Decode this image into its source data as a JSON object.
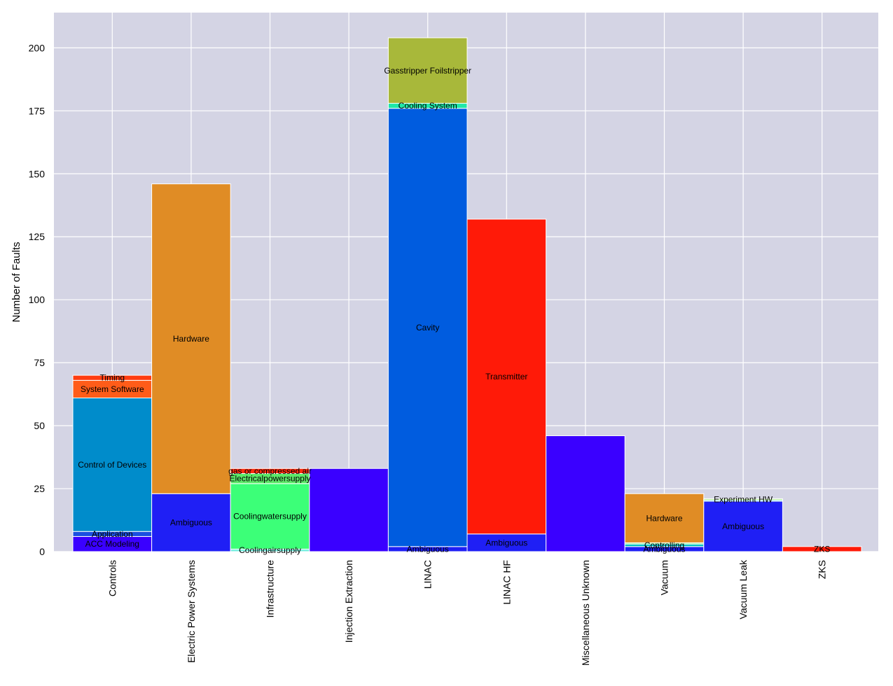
{
  "chart_data": {
    "type": "bar",
    "stacked": true,
    "title": "",
    "xlabel": "",
    "ylabel": "Number of Faults",
    "ylim": [
      0,
      214
    ],
    "yticks": [
      0,
      25,
      50,
      75,
      100,
      125,
      150,
      175,
      200
    ],
    "grid": true,
    "legend": "none",
    "background": "#d4d4e4",
    "categories": [
      "Controls",
      "Electric Power Systems",
      "Infrastructure",
      "Injection Extraction",
      "LINAC",
      "LINAC HF",
      "Miscellaneous Unknown",
      "Vacuum",
      "Vacuum Leak",
      "ZKS"
    ],
    "stacks": [
      [
        {
          "label": "ACC Modeling",
          "value": 6,
          "color": "#3a00ff"
        },
        {
          "label": "Application",
          "value": 2,
          "color": "#1a4fe0"
        },
        {
          "label": "Control of Devices",
          "value": 53,
          "color": "#008ccb"
        },
        {
          "label": "System Software",
          "value": 7,
          "color": "#ff5c19"
        },
        {
          "label": "Timing",
          "value": 2,
          "color": "#ff3c10"
        }
      ],
      [
        {
          "label": "Ambiguous",
          "value": 23,
          "color": "#1f1ff5"
        },
        {
          "label": "Hardware",
          "value": 123,
          "color": "#e08c25"
        }
      ],
      [
        {
          "label": "Coolingairsupply",
          "value": 1,
          "color": "#7aeee0"
        },
        {
          "label": "Coolingwatersupply",
          "value": 26,
          "color": "#3cff78"
        },
        {
          "label": "Electricalpowersupply",
          "value": 4,
          "color": "#5ce868"
        },
        {
          "label": "gas or compressed air",
          "value": 2,
          "color": "#ff2a0e"
        }
      ],
      [
        {
          "label": "",
          "value": 33,
          "color": "#3a00ff"
        }
      ],
      [
        {
          "label": "Ambiguous",
          "value": 2,
          "color": "#1f1ff5"
        },
        {
          "label": "Cavity",
          "value": 174,
          "color": "#005cdf"
        },
        {
          "label": "Cooling System",
          "value": 2,
          "color": "#20e8a8"
        },
        {
          "label": "Gasstripper Foilstripper",
          "value": 26,
          "color": "#a8b83a"
        }
      ],
      [
        {
          "label": "Ambiguous",
          "value": 7,
          "color": "#1f1ff5"
        },
        {
          "label": "Transmitter",
          "value": 125,
          "color": "#ff1a08"
        }
      ],
      [
        {
          "label": "",
          "value": 46,
          "color": "#3a00ff"
        }
      ],
      [
        {
          "label": "Ambiguous",
          "value": 2,
          "color": "#1f1ff5"
        },
        {
          "label": "Controlling",
          "value": 1,
          "color": "#00c0c0"
        },
        {
          "label": "",
          "value": 0.5,
          "color": "#80f080"
        },
        {
          "label": "Hardware",
          "value": 19.5,
          "color": "#e08c25"
        }
      ],
      [
        {
          "label": "Ambiguous",
          "value": 20,
          "color": "#1f1ff5"
        },
        {
          "label": "",
          "value": 0.5,
          "color": "#60d8d8"
        },
        {
          "label": "Experiment HW",
          "value": 0.5,
          "color": "#a8f080"
        }
      ],
      [
        {
          "label": "ZKS",
          "value": 2,
          "color": "#ff1a08"
        }
      ]
    ]
  }
}
